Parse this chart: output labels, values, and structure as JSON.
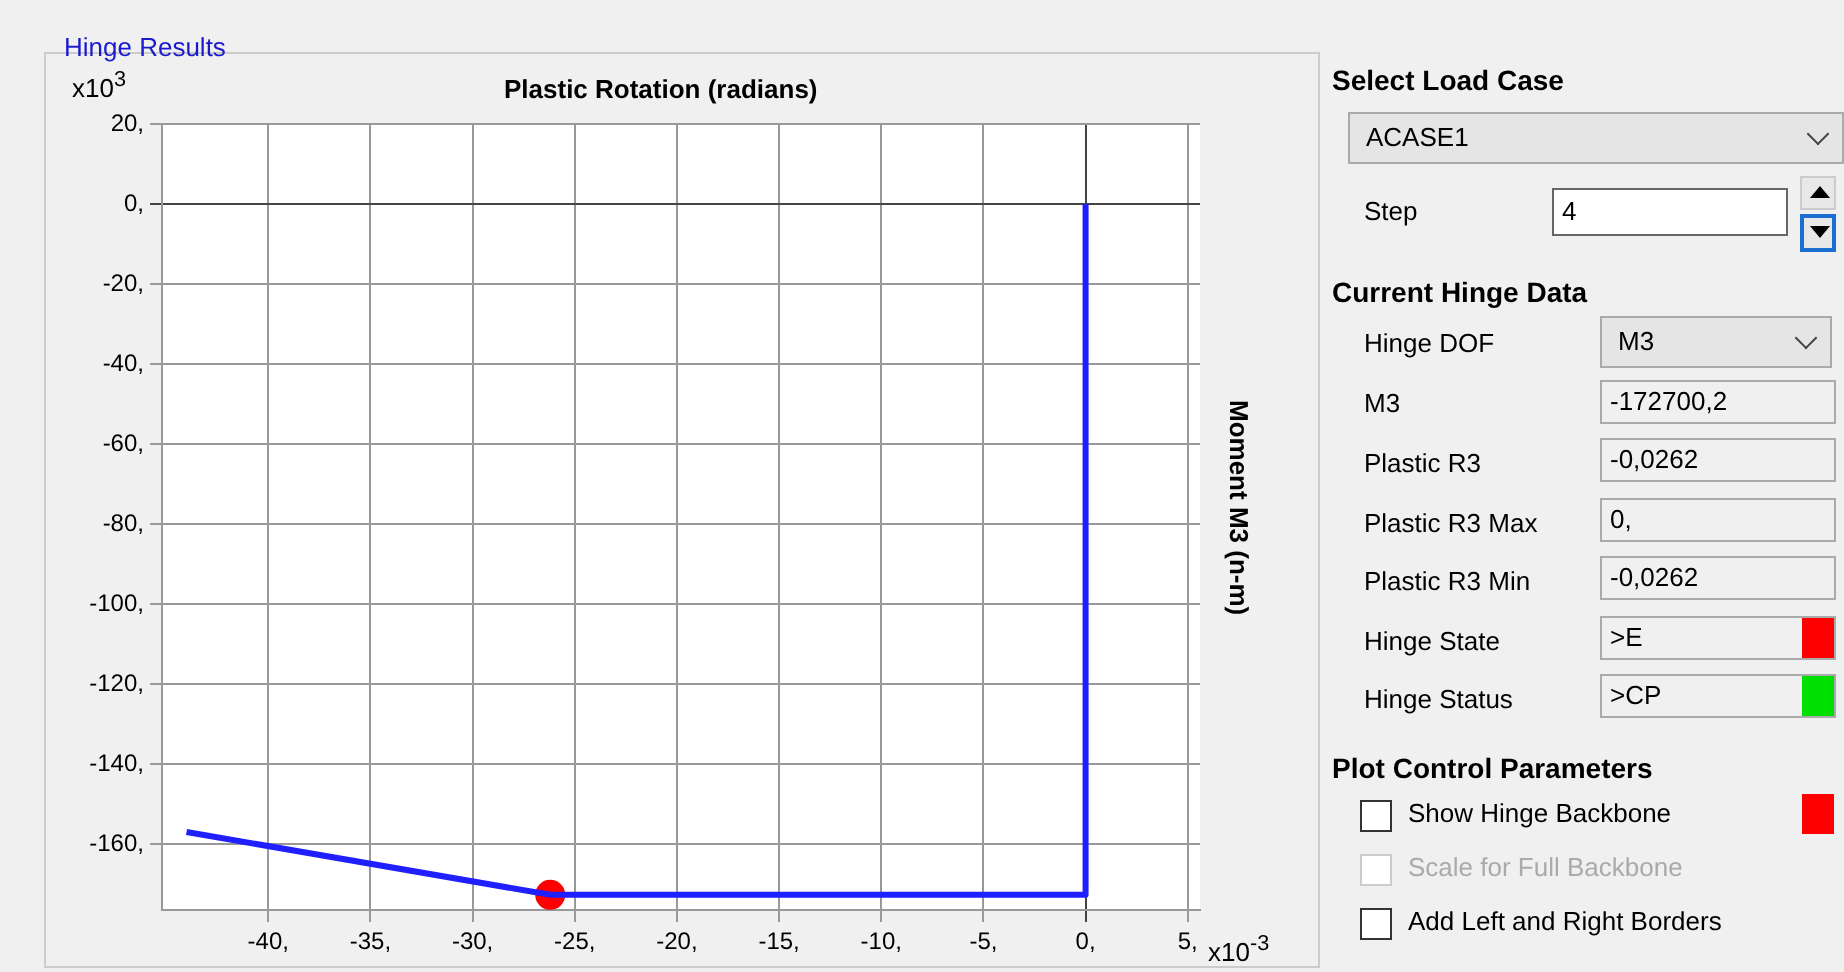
{
  "chart_data": [
    {
      "type": "line",
      "xlabel": "Plastic Rotation  (radians)",
      "ylabel": "Moment M3  (n-m)",
      "annotations": [
        "Hinge Results",
        "x10$^{3}$",
        "x10$^{-3}$"
      ],
      "series": [
        {
          "type": "line",
          "color": "#1f1fff",
          "x": [
            -44,
            -26.2,
            0,
            0
          ],
          "values": [
            -157,
            -172.7,
            -172.7,
            0
          ],
          "marker": "none"
        },
        {
          "type": "scatter",
          "color": "#ff0000",
          "x": [
            -26.2
          ],
          "values": [
            -172.7
          ],
          "marker": "circle"
        }
      ],
      "xlim": [
        -45.2,
        5.6
      ],
      "ylim": [
        -176.5,
        20
      ],
      "xticks": [
        {
          "value": -40,
          "label": "-40,"
        },
        {
          "value": -35,
          "label": "-35,"
        },
        {
          "value": -30,
          "label": "-30,"
        },
        {
          "value": -25,
          "label": "-25,"
        },
        {
          "value": -20,
          "label": "-20,"
        },
        {
          "value": -15,
          "label": "-15,"
        },
        {
          "value": -10,
          "label": "-10,"
        },
        {
          "value": -5,
          "label": "-5,"
        },
        {
          "value": 0,
          "label": "0,"
        },
        {
          "value": 5,
          "label": "5,"
        }
      ],
      "yticks": [
        {
          "value": 20,
          "label": "20,"
        },
        {
          "value": 0,
          "label": "0,"
        },
        {
          "value": -20,
          "label": "-20,"
        },
        {
          "value": -40,
          "label": "-40,"
        },
        {
          "value": -60,
          "label": "-60,"
        },
        {
          "value": -80,
          "label": "-80,"
        },
        {
          "value": -100,
          "label": "-100,"
        },
        {
          "value": -120,
          "label": "-120,"
        },
        {
          "value": -140,
          "label": "-140,"
        },
        {
          "value": -160,
          "label": "-160,"
        }
      ],
      "grid": true,
      "legend": false
    },
    {
      "type": "other",
      "annotations": [
        "Select Load Case",
        "ACASE1",
        "Step",
        "4",
        "Current Hinge Data",
        "Hinge DOF",
        "M3",
        "M3",
        "-172700,2",
        "Plastic R3",
        "-0,0262",
        "Plastic R3 Max",
        "0,",
        "Plastic R3 Min",
        "-0,0262",
        "Hinge State",
        ">E",
        "Hinge Status",
        ">CP",
        "Plot Control Parameters",
        "Show Hinge Backbone",
        "Scale for Full Backbone",
        "Add Left and Right Borders"
      ]
    }
  ]
}
